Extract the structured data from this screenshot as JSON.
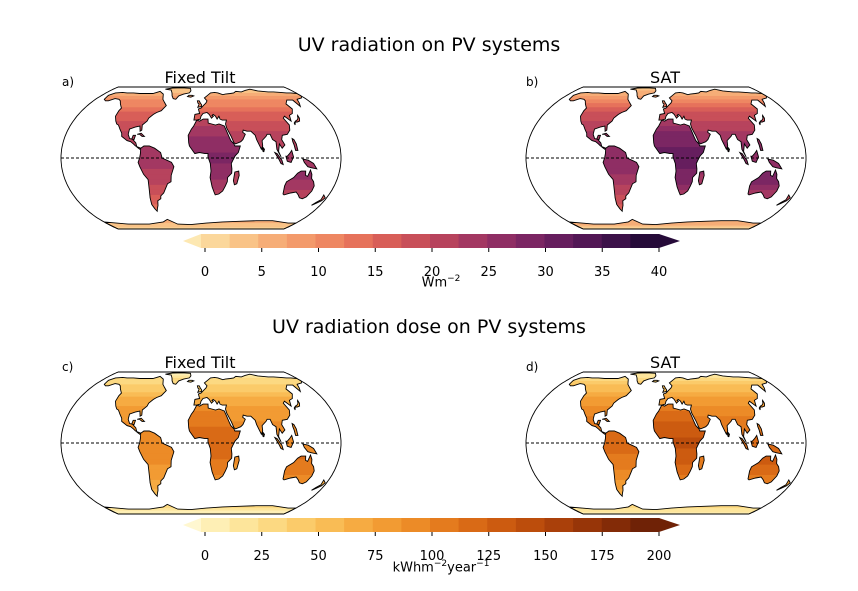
{
  "figure": {
    "top_title": "UV radiation on PV systems",
    "bottom_title": "UV radiation dose on PV systems"
  },
  "panels": [
    {
      "label": "a)",
      "title": "Fixed Tilt",
      "ramp": "rad",
      "level": 0.6
    },
    {
      "label": "b)",
      "title": "SAT",
      "ramp": "rad",
      "level": 0.68
    },
    {
      "label": "c)",
      "title": "Fixed Tilt",
      "ramp": "dose",
      "level": 0.5
    },
    {
      "label": "d)",
      "title": "SAT",
      "ramp": "dose",
      "level": 0.6
    }
  ],
  "colorbars": {
    "radiation": {
      "ticks": [
        "0",
        "5",
        "10",
        "15",
        "20",
        "25",
        "30",
        "35",
        "40"
      ],
      "unit_base": "Wm",
      "unit_sup": "−2",
      "colors": [
        "#fde8b2",
        "#fbd79b",
        "#f9c387",
        "#f6ad77",
        "#f39a6b",
        "#ee8762",
        "#e6725b",
        "#d85e58",
        "#c84f59",
        "#b7435d",
        "#a33862",
        "#8f2e64",
        "#7b2663",
        "#661e5e",
        "#521755",
        "#3c1149",
        "#260b39"
      ]
    },
    "dose": {
      "ticks": [
        "0",
        "25",
        "50",
        "75",
        "100",
        "125",
        "150",
        "175",
        "200"
      ],
      "unit_base": "kWhm",
      "unit_sup1": "−2",
      "unit_mid": "year",
      "unit_sup2": "−1",
      "colors": [
        "#fff7d0",
        "#feefb5",
        "#fde59b",
        "#fcd982",
        "#fbcb6a",
        "#f9bc55",
        "#f6ab42",
        "#f29b33",
        "#ec8b27",
        "#e47b1e",
        "#d96a16",
        "#cc5b10",
        "#bc4d0c",
        "#aa400a",
        "#973508",
        "#832b07",
        "#6f2206"
      ]
    }
  }
}
